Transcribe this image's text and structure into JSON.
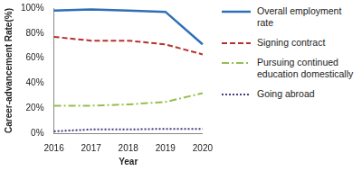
{
  "chart_data": {
    "type": "line",
    "x_label": "Year",
    "y_label": "Career-advancement Rate(%)",
    "categories": [
      "2016",
      "2017",
      "2018",
      "2019",
      "2020"
    ],
    "series": [
      {
        "name": "Overall employment rate",
        "color": "#2e6fb7",
        "line_style": "solid",
        "values": [
          98,
          99,
          98,
          97,
          71
        ]
      },
      {
        "name": "Signing contract",
        "color": "#b8302c",
        "line_style": "dashed",
        "values": [
          77,
          74,
          74,
          71,
          63
        ]
      },
      {
        "name": "Pursuing continued education domestically",
        "color": "#92c050",
        "line_style": "dashdot",
        "values": [
          22,
          22,
          23,
          25,
          32
        ]
      },
      {
        "name": "Going abroad",
        "color": "#4b3a78",
        "line_style": "dotted",
        "values": [
          1.5,
          3,
          3,
          3.5,
          3.5
        ]
      }
    ],
    "ylim": [
      0,
      100
    ],
    "yticks": [
      {
        "value": 0,
        "label": "0%"
      },
      {
        "value": 20,
        "label": "20%"
      },
      {
        "value": 40,
        "label": "40%"
      },
      {
        "value": 60,
        "label": "60%"
      },
      {
        "value": 80,
        "label": "80%"
      },
      {
        "value": 100,
        "label": "100%"
      }
    ],
    "grid": false,
    "legend": "right",
    "marker": "none"
  }
}
